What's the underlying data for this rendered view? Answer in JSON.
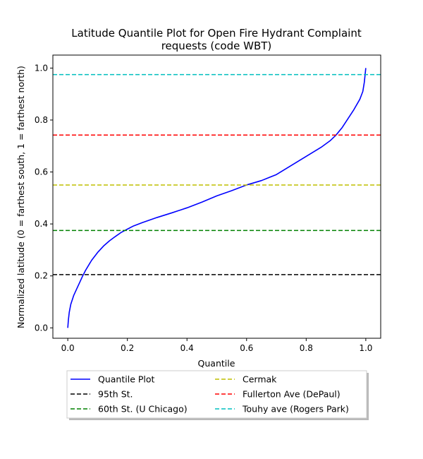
{
  "chart_data": {
    "type": "line",
    "title": "Latitude Quantile Plot for Open Fire Hydrant Complaint requests (code WBT)",
    "title_lines": [
      "Latitude Quantile Plot for Open Fire Hydrant Complaint",
      "requests (code WBT)"
    ],
    "xlabel": "Quantile",
    "ylabel": "Normalized latitude (0 = farthest south, 1 = farthest north)",
    "xlim": [
      -0.05,
      1.05
    ],
    "ylim": [
      -0.04,
      1.05
    ],
    "xticks": [
      0.0,
      0.2,
      0.4,
      0.6,
      0.8,
      1.0
    ],
    "xtick_labels": [
      "0.0",
      "0.2",
      "0.4",
      "0.6",
      "0.8",
      "1.0"
    ],
    "yticks": [
      0.0,
      0.2,
      0.4,
      0.6,
      0.8,
      1.0
    ],
    "ytick_labels": [
      "0.0",
      "0.2",
      "0.4",
      "0.6",
      "0.8",
      "1.0"
    ],
    "grid": false,
    "legend_position": "below",
    "legend_columns": 2,
    "series": [
      {
        "name": "Quantile Plot",
        "color": "#0000ff",
        "style": "solid",
        "x": [
          0.0,
          0.002,
          0.005,
          0.01,
          0.02,
          0.03,
          0.04,
          0.05,
          0.06,
          0.08,
          0.1,
          0.12,
          0.14,
          0.16,
          0.18,
          0.2,
          0.22,
          0.25,
          0.3,
          0.35,
          0.4,
          0.45,
          0.5,
          0.55,
          0.6,
          0.65,
          0.7,
          0.75,
          0.8,
          0.85,
          0.88,
          0.9,
          0.92,
          0.94,
          0.96,
          0.98,
          0.99,
          0.995,
          1.0
        ],
        "y": [
          0.0,
          0.03,
          0.06,
          0.09,
          0.125,
          0.15,
          0.175,
          0.2,
          0.222,
          0.26,
          0.29,
          0.315,
          0.335,
          0.352,
          0.368,
          0.38,
          0.392,
          0.405,
          0.425,
          0.443,
          0.462,
          0.484,
          0.508,
          0.528,
          0.55,
          0.567,
          0.59,
          0.625,
          0.66,
          0.695,
          0.72,
          0.742,
          0.77,
          0.805,
          0.84,
          0.88,
          0.91,
          0.945,
          1.0
        ]
      },
      {
        "name": "95th St.",
        "color": "#000000",
        "style": "dashed",
        "hline": 0.205
      },
      {
        "name": "60th St. (U Chicago)",
        "color": "#008000",
        "style": "dashed",
        "hline": 0.375
      },
      {
        "name": "Cermak",
        "color": "#bfbf00",
        "style": "dashed",
        "hline": 0.55
      },
      {
        "name": "Fullerton Ave (DePaul)",
        "color": "#ff0000",
        "style": "dashed",
        "hline": 0.742
      },
      {
        "name": "Touhy ave (Rogers Park)",
        "color": "#00bfbf",
        "style": "dashed",
        "hline": 0.975
      }
    ]
  }
}
